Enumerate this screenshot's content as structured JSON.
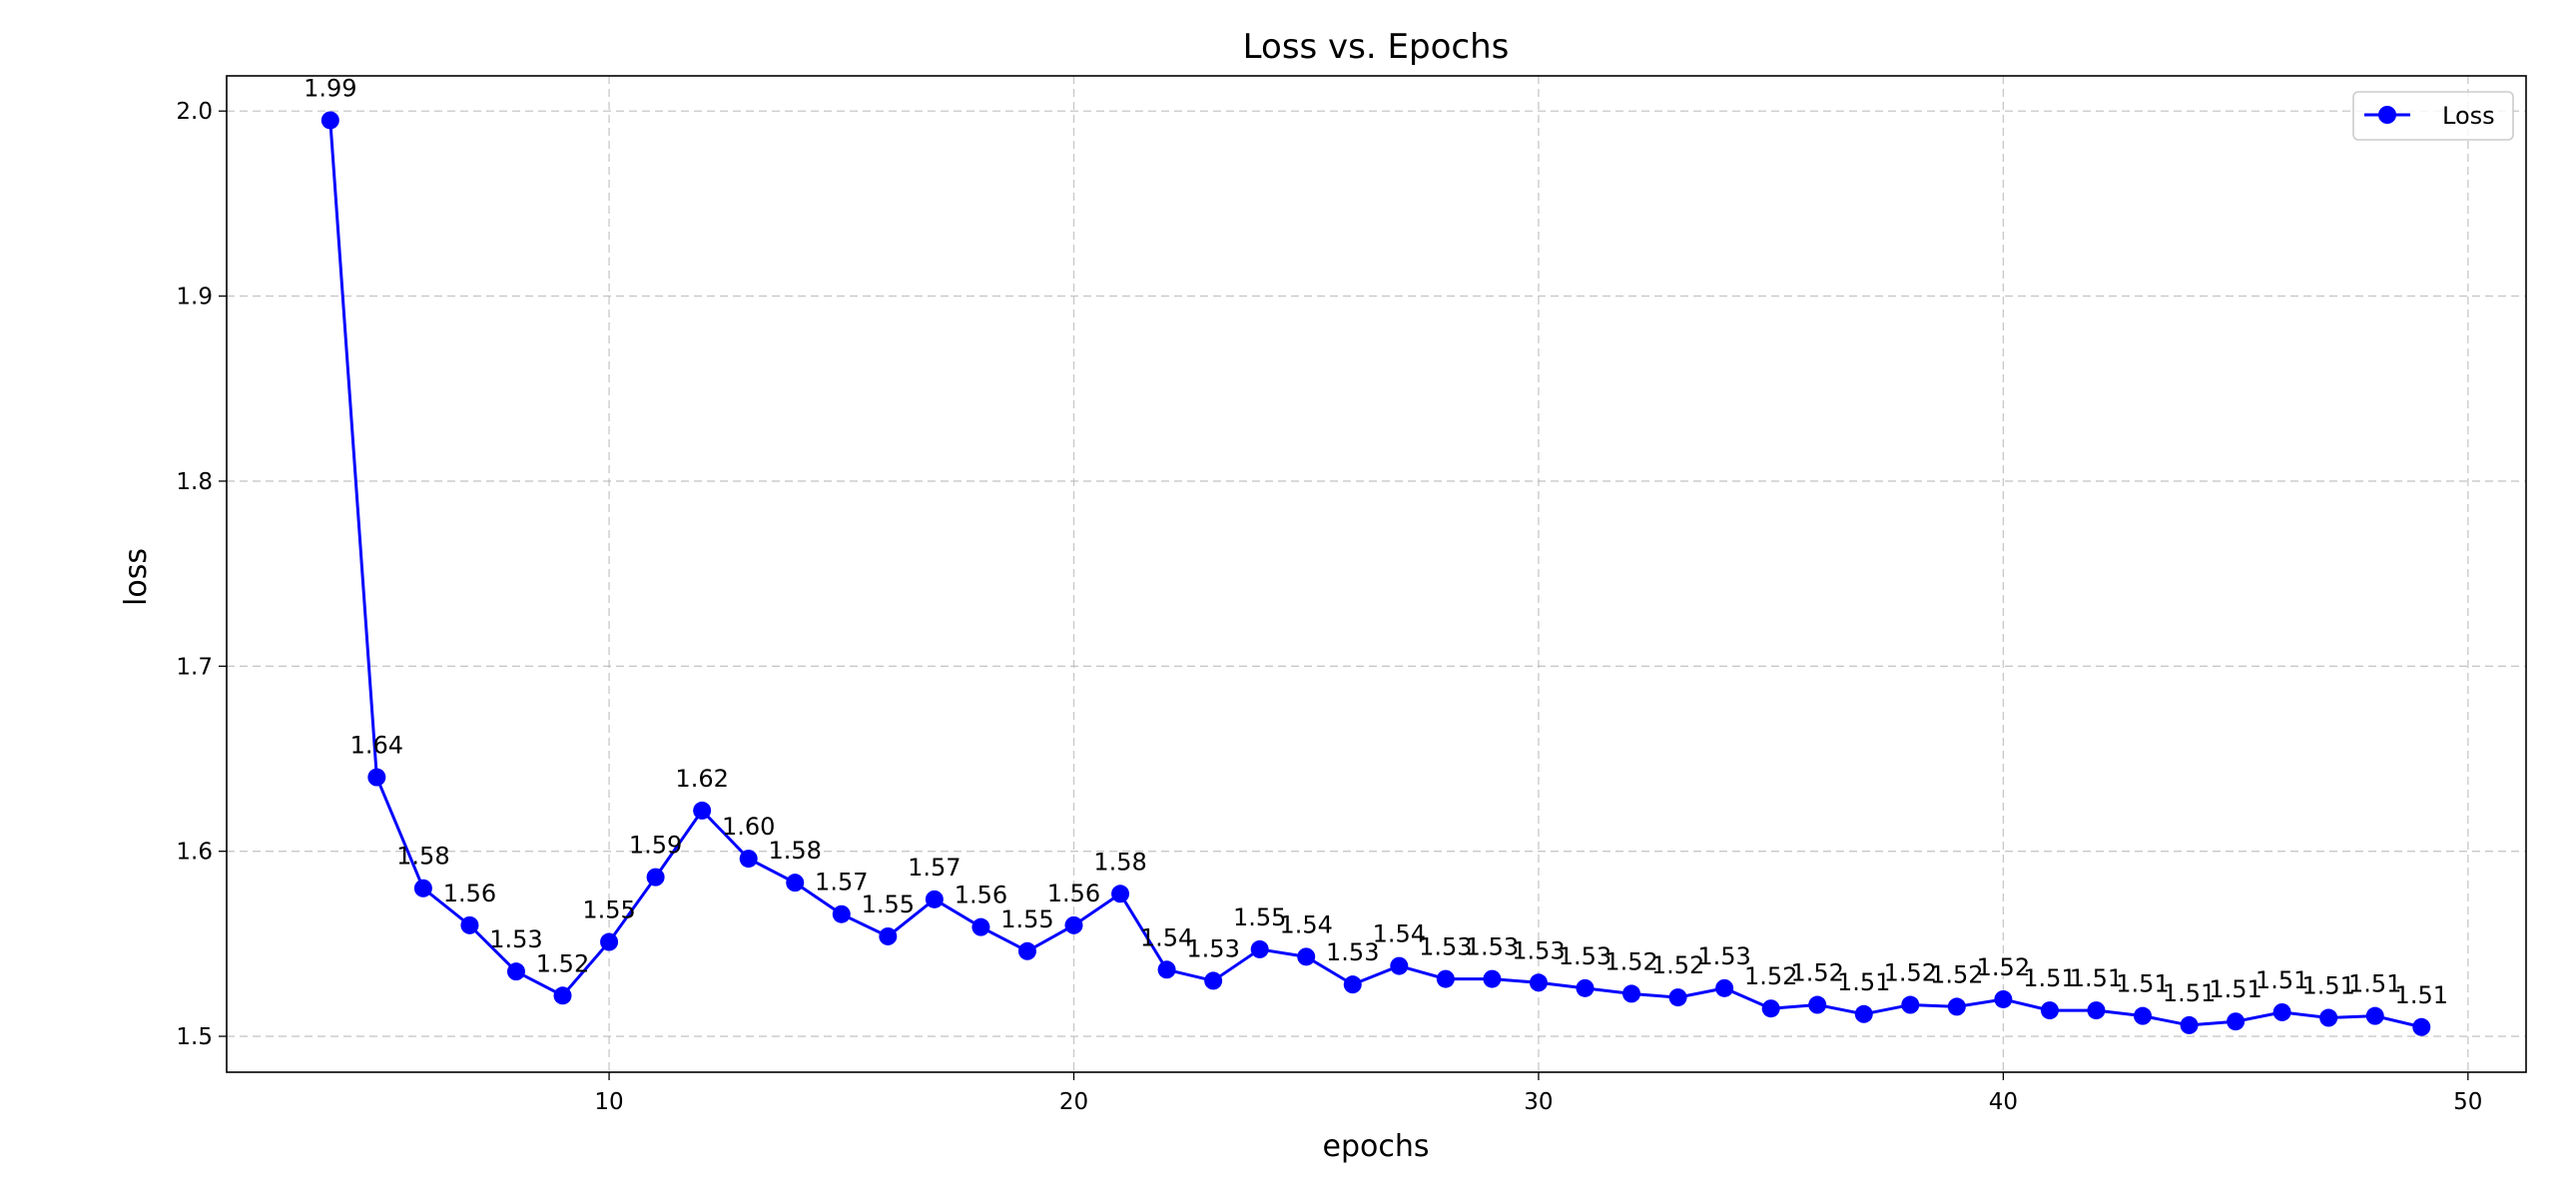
{
  "chart_data": {
    "type": "line",
    "title": "Loss vs. Epochs",
    "xlabel": "epochs",
    "ylabel": "loss",
    "xlim": [
      1.77,
      51.25
    ],
    "ylim": [
      1.4806,
      2.019
    ],
    "xticks": [
      10,
      20,
      30,
      40,
      50
    ],
    "yticks": [
      1.5,
      1.6,
      1.7,
      1.8,
      1.9,
      2.0
    ],
    "ytick_labels": [
      "1.5",
      "1.6",
      "1.7",
      "1.8",
      "1.9",
      "2.0"
    ],
    "grid": true,
    "legend_placement": "top-right",
    "series": [
      {
        "name": "Loss",
        "color": "#0000ff",
        "marker": "circle",
        "x": [
          4,
          5,
          6,
          7,
          8,
          9,
          10,
          11,
          12,
          13,
          14,
          15,
          16,
          17,
          18,
          19,
          20,
          21,
          22,
          23,
          24,
          25,
          26,
          27,
          28,
          29,
          30,
          31,
          32,
          33,
          34,
          35,
          36,
          37,
          38,
          39,
          40,
          41,
          42,
          43,
          44,
          45,
          46,
          47,
          48,
          49
        ],
        "values": [
          1.995,
          1.64,
          1.58,
          1.56,
          1.535,
          1.522,
          1.551,
          1.586,
          1.622,
          1.596,
          1.583,
          1.566,
          1.554,
          1.574,
          1.559,
          1.546,
          1.56,
          1.577,
          1.536,
          1.53,
          1.547,
          1.543,
          1.528,
          1.538,
          1.531,
          1.531,
          1.529,
          1.526,
          1.523,
          1.521,
          1.526,
          1.515,
          1.517,
          1.512,
          1.517,
          1.516,
          1.52,
          1.514,
          1.514,
          1.511,
          1.506,
          1.508,
          1.513,
          1.51,
          1.511,
          1.505
        ],
        "labels": [
          "1.99",
          "1.64",
          "1.58",
          "1.56",
          "1.53",
          "1.52",
          "1.55",
          "1.59",
          "1.62",
          "1.60",
          "1.58",
          "1.57",
          "1.55",
          "1.57",
          "1.56",
          "1.55",
          "1.56",
          "1.58",
          "1.54",
          "1.53",
          "1.55",
          "1.54",
          "1.53",
          "1.54",
          "1.53",
          "1.53",
          "1.53",
          "1.53",
          "1.52",
          "1.52",
          "1.53",
          "1.52",
          "1.52",
          "1.51",
          "1.52",
          "1.52",
          "1.52",
          "1.51",
          "1.51",
          "1.51",
          "1.51",
          "1.51",
          "1.51",
          "1.51",
          "1.51",
          "1.51"
        ]
      }
    ]
  }
}
